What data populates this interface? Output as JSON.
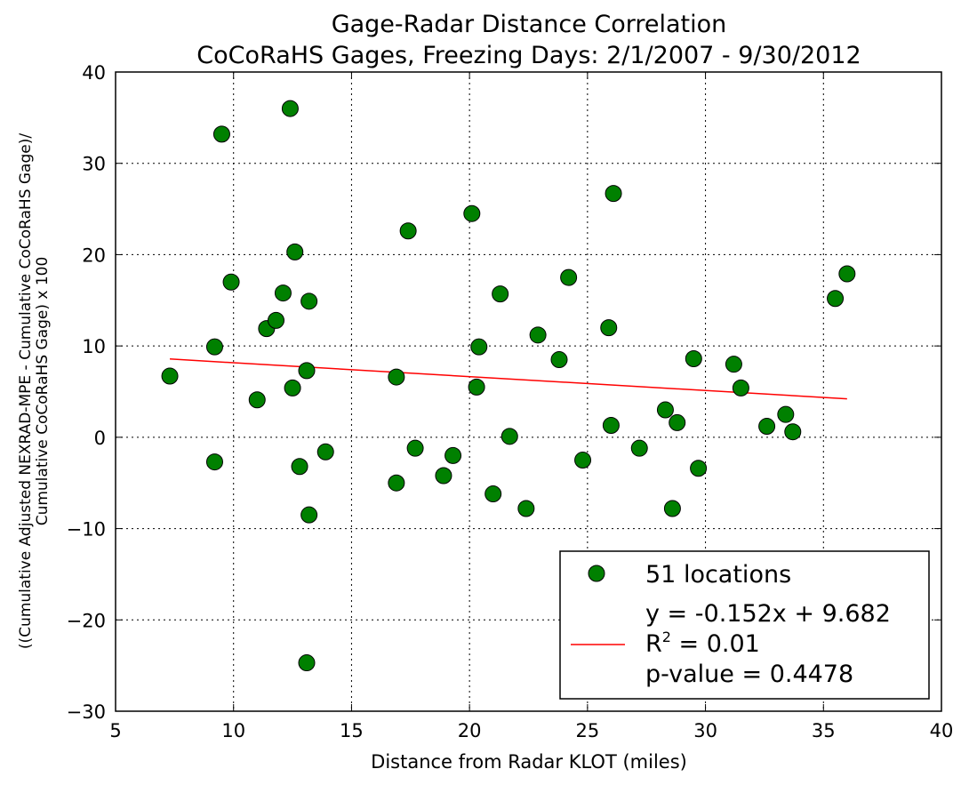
{
  "chart_data": {
    "type": "scatter",
    "title": "Gage-Radar Distance Correlation",
    "subtitle": "CoCoRaHS Gages, Freezing Days: 2/1/2007 - 9/30/2012",
    "xlabel": "Distance from Radar KLOT (miles)",
    "ylabel_line1": "((Cumulative Adjusted NEXRAD-MPE - Cumulative CoCoRaHS Gage)/",
    "ylabel_line2": "Cumulative CoCoRaHS Gage) x 100",
    "xlim": [
      5,
      40
    ],
    "ylim": [
      -30,
      40
    ],
    "xticks": [
      5,
      10,
      15,
      20,
      25,
      30,
      35,
      40
    ],
    "yticks": [
      -30,
      -20,
      -10,
      0,
      10,
      20,
      30,
      40
    ],
    "xtick_labels": [
      "5",
      "10",
      "15",
      "20",
      "25",
      "30",
      "35",
      "40"
    ],
    "ytick_labels": [
      "−30",
      "−20",
      "−10",
      "0",
      "10",
      "20",
      "30",
      "40"
    ],
    "grid": true,
    "legend_position": "lower-right",
    "colors": {
      "points": "#008000",
      "point_edge": "#000000",
      "fit": "#ff0000"
    },
    "series": [
      {
        "name": "51 locations",
        "points": [
          [
            7.3,
            6.7
          ],
          [
            9.2,
            9.9
          ],
          [
            9.2,
            -2.7
          ],
          [
            9.5,
            33.2
          ],
          [
            9.9,
            17.0
          ],
          [
            11.0,
            4.1
          ],
          [
            11.4,
            11.9
          ],
          [
            11.8,
            12.8
          ],
          [
            12.1,
            15.8
          ],
          [
            12.4,
            36.0
          ],
          [
            12.5,
            5.4
          ],
          [
            12.6,
            20.3
          ],
          [
            12.8,
            -3.2
          ],
          [
            13.1,
            7.3
          ],
          [
            13.2,
            14.9
          ],
          [
            13.2,
            -8.5
          ],
          [
            13.1,
            -24.7
          ],
          [
            13.9,
            -1.6
          ],
          [
            16.9,
            6.6
          ],
          [
            16.9,
            -5.0
          ],
          [
            17.4,
            22.6
          ],
          [
            17.7,
            -1.2
          ],
          [
            18.9,
            -4.2
          ],
          [
            19.3,
            -2.0
          ],
          [
            20.1,
            24.5
          ],
          [
            20.3,
            5.5
          ],
          [
            20.4,
            9.9
          ],
          [
            21.0,
            -6.2
          ],
          [
            21.3,
            15.7
          ],
          [
            21.7,
            0.1
          ],
          [
            22.4,
            -7.8
          ],
          [
            22.9,
            11.2
          ],
          [
            23.8,
            8.5
          ],
          [
            24.2,
            17.5
          ],
          [
            24.8,
            -2.5
          ],
          [
            25.9,
            12.0
          ],
          [
            26.0,
            1.3
          ],
          [
            26.1,
            26.7
          ],
          [
            27.2,
            -1.2
          ],
          [
            28.3,
            3.0
          ],
          [
            28.6,
            -7.8
          ],
          [
            28.8,
            1.6
          ],
          [
            29.5,
            8.6
          ],
          [
            29.7,
            -3.4
          ],
          [
            31.2,
            8.0
          ],
          [
            31.5,
            5.4
          ],
          [
            32.6,
            1.2
          ],
          [
            33.4,
            2.5
          ],
          [
            33.7,
            0.6
          ],
          [
            35.5,
            15.2
          ],
          [
            36.0,
            17.9
          ]
        ]
      },
      {
        "name": "fit",
        "slope": -0.152,
        "intercept": 9.682,
        "x_range": [
          7.3,
          36.0
        ]
      }
    ],
    "legend": {
      "points_label": "51 locations",
      "fit_line1": "y = -0.152x + 9.682",
      "fit_line2_prefix": "R",
      "fit_line2_sup": "2",
      "fit_line2_suffix": " = 0.01",
      "fit_line3": "p-value = 0.4478"
    }
  }
}
